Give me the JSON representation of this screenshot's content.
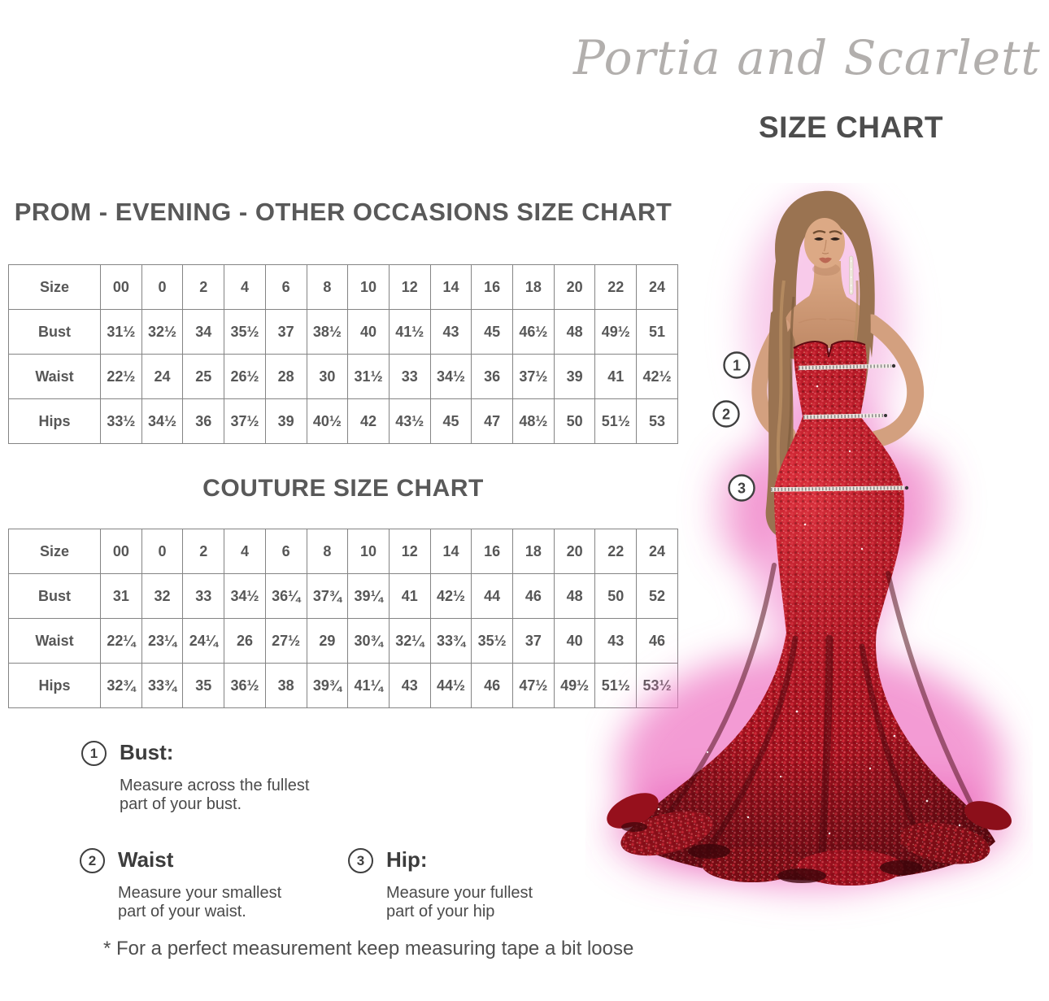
{
  "brand": {
    "logo_text": "Portia and Scarlett",
    "page_title": "SIZE CHART"
  },
  "sections": {
    "prom_heading": "PROM - EVENING - OTHER OCCASIONS SIZE CHART",
    "couture_heading": "COUTURE SIZE CHART"
  },
  "tables": {
    "prom": {
      "header_row": [
        "Size",
        "00",
        "0",
        "2",
        "4",
        "6",
        "8",
        "10",
        "12",
        "14",
        "16",
        "18",
        "20",
        "22",
        "24"
      ],
      "rows": [
        {
          "label": "Bust",
          "values": [
            "31½",
            "32½",
            "34",
            "35½",
            "37",
            "38½",
            "40",
            "41½",
            "43",
            "45",
            "46½",
            "48",
            "49½",
            "51"
          ]
        },
        {
          "label": "Waist",
          "values": [
            "22½",
            "24",
            "25",
            "26½",
            "28",
            "30",
            "31½",
            "33",
            "34½",
            "36",
            "37½",
            "39",
            "41",
            "42½"
          ]
        },
        {
          "label": "Hips",
          "values": [
            "33½",
            "34½",
            "36",
            "37½",
            "39",
            "40½",
            "42",
            "43½",
            "45",
            "47",
            "48½",
            "50",
            "51½",
            "53"
          ]
        }
      ]
    },
    "couture": {
      "header_row": [
        "Size",
        "00",
        "0",
        "2",
        "4",
        "6",
        "8",
        "10",
        "12",
        "14",
        "16",
        "18",
        "20",
        "22",
        "24"
      ],
      "rows": [
        {
          "label": "Bust",
          "values": [
            "31",
            "32",
            "33",
            "34½",
            "36¼",
            "37¾",
            "39¼",
            "41",
            "42½",
            "44",
            "46",
            "48",
            "50",
            "52"
          ]
        },
        {
          "label": "Waist",
          "values": [
            "22¼",
            "23¼",
            "24¼",
            "26",
            "27½",
            "29",
            "30¾",
            "32¼",
            "33¾",
            "35½",
            "37",
            "40",
            "43",
            "46"
          ]
        },
        {
          "label": "Hips",
          "values": [
            "32¾",
            "33¾",
            "35",
            "36½",
            "38",
            "39¾",
            "41¼",
            "43",
            "44½",
            "46",
            "47½",
            "49½",
            "51½",
            "53½"
          ]
        }
      ]
    }
  },
  "annotations": [
    {
      "marker": "1",
      "title": "Bust:",
      "description": "Measure across the fullest\npart of your bust."
    },
    {
      "marker": "2",
      "title": "Waist",
      "description": "Measure your smallest\npart of your waist."
    },
    {
      "marker": "3",
      "title": "Hip:",
      "description": "Measure your fullest\npart of your hip"
    }
  ],
  "figure": {
    "markers": [
      "1",
      "2",
      "3"
    ]
  },
  "footnote": "* For a perfect measurement keep measuring tape a bit loose",
  "colors": {
    "heading_gray": "#595959",
    "table_border_gray": "#848484",
    "dress_red": "#a9121f",
    "glow_pink": "#ef79c6",
    "logo_gray": "#b2afad"
  }
}
